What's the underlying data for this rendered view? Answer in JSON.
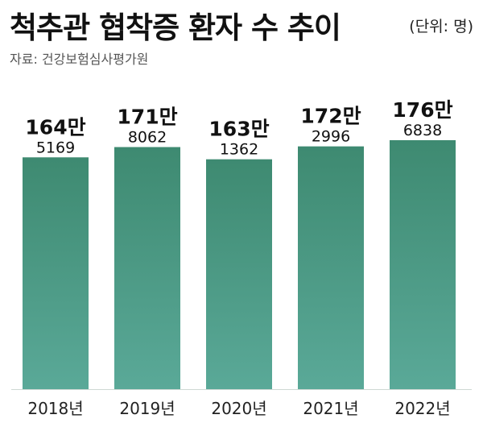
{
  "header": {
    "title": "척추관 협착증 환자 수 추이",
    "unit": "(단위: 명)",
    "source": "자료: 건강보험심사평가원"
  },
  "chart_data": {
    "type": "bar",
    "title": "척추관 협착증 환자 수 추이",
    "unit": "(단위: 명)",
    "categories": [
      "2018년",
      "2019년",
      "2020년",
      "2021년",
      "2022년"
    ],
    "values": [
      1645169,
      1718062,
      1631362,
      1722996,
      1766838
    ],
    "label_main": [
      "164만",
      "171만",
      "163만",
      "172만",
      "176만"
    ],
    "label_sub": [
      "5169",
      "8062",
      "1362",
      "2996",
      "6838"
    ],
    "ylim": [
      0,
      1800000
    ],
    "grid": false,
    "legend": "none",
    "colors": {
      "bar_top": "#3e8a71",
      "bar_bottom": "#5aa998",
      "axis": "#cfd8d3",
      "label": "#111111",
      "tick": "#222222"
    }
  }
}
